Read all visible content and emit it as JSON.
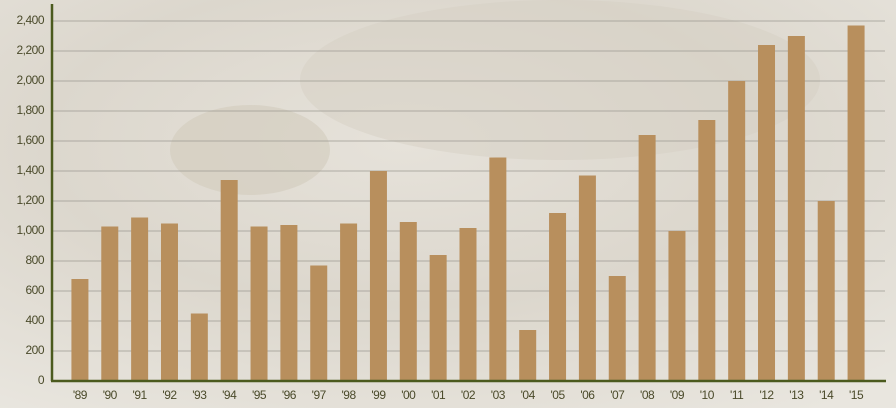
{
  "chart_data": {
    "type": "bar",
    "categories": [
      "'89",
      "'90",
      "'91",
      "'92",
      "'93",
      "'94",
      "'95",
      "'96",
      "'97",
      "'98",
      "'99",
      "'00",
      "'01",
      "'02",
      "'03",
      "'04",
      "'05",
      "'06",
      "'07",
      "'08",
      "'09",
      "'10",
      "'11",
      "'12",
      "'13",
      "'14",
      "'15"
    ],
    "values": [
      680,
      1030,
      1090,
      1050,
      450,
      1340,
      1030,
      1040,
      770,
      1050,
      1400,
      1060,
      840,
      1020,
      1490,
      340,
      1120,
      1370,
      700,
      1640,
      1000,
      1740,
      2000,
      2240,
      2300,
      1200,
      2370
    ],
    "color": "#b88f5d",
    "ylim": [
      0,
      2400
    ],
    "yticks": [
      0,
      200,
      400,
      600,
      800,
      {
        "value": 1000,
        "label": "1,000"
      },
      {
        "value": 1200,
        "label": "1,200"
      },
      {
        "value": 1400,
        "label": "1,400"
      },
      {
        "value": 1600,
        "label": "1,600"
      },
      {
        "value": 1800,
        "label": "1,800"
      },
      {
        "value": 2000,
        "label": "2,000"
      },
      {
        "value": 2200,
        "label": "2,200"
      },
      {
        "value": 2400,
        "label": "2,400"
      }
    ],
    "grid": true
  }
}
